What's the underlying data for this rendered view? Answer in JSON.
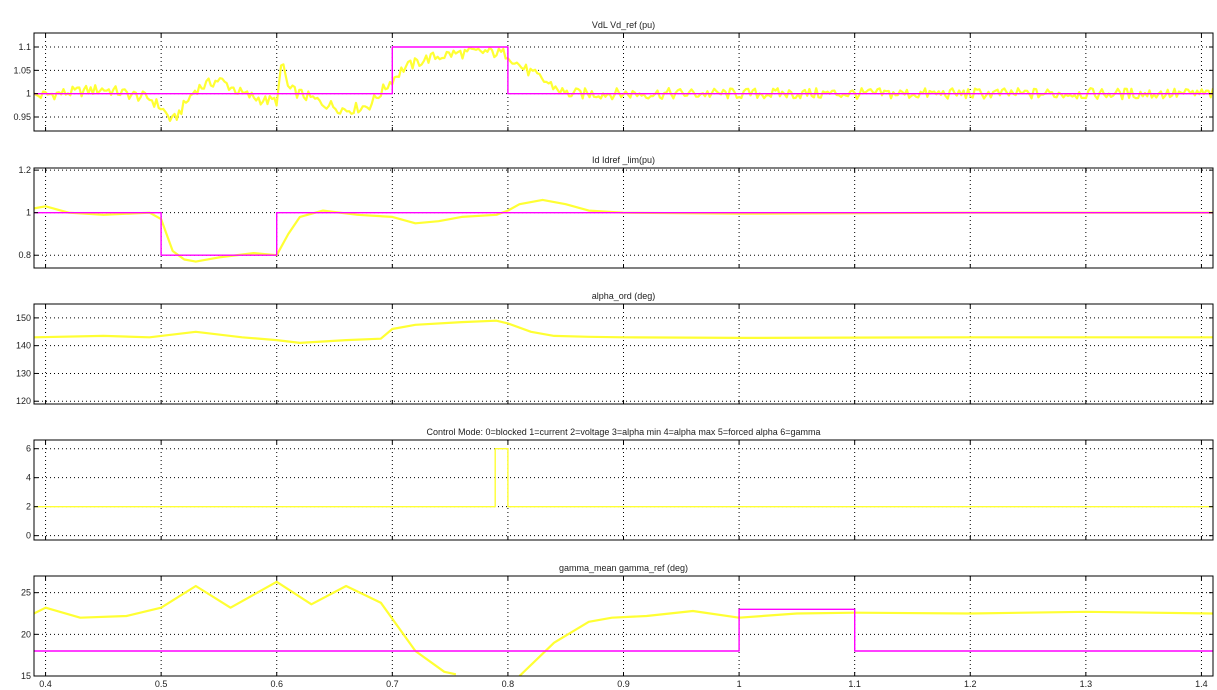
{
  "figure": {
    "background": "#ffffff",
    "trace_color_1": "#ffff33",
    "trace_color_2": "#ff00ff",
    "grid": true,
    "grid_style": "dotted"
  },
  "chart_data": [
    {
      "type": "line",
      "title": "VdL  Vd_ref (pu)",
      "xlim": [
        0.39,
        1.41
      ],
      "ylim": [
        0.92,
        1.13
      ],
      "yticks": [
        0.95,
        1,
        1.05,
        1.1
      ],
      "ytick_labels": [
        "0.95",
        "1",
        "1.05",
        "1.1"
      ],
      "xticks": [
        0.4,
        0.5,
        0.6,
        0.7,
        0.8,
        0.9,
        1,
        1.1,
        1.2,
        1.3,
        1.4
      ],
      "series": [
        {
          "color": "#ffff33",
          "noise": 0.012,
          "x": [
            0.39,
            0.45,
            0.49,
            0.5,
            0.51,
            0.52,
            0.53,
            0.55,
            0.57,
            0.59,
            0.6,
            0.605,
            0.61,
            0.62,
            0.64,
            0.66,
            0.68,
            0.7,
            0.71,
            0.73,
            0.75,
            0.78,
            0.8,
            0.81,
            0.83,
            0.85,
            0.9,
            1.0,
            1.2,
            1.41
          ],
          "y": [
            0.995,
            1.01,
            0.99,
            0.97,
            0.94,
            0.975,
            1.01,
            1.03,
            1.0,
            0.985,
            0.985,
            1.07,
            1.01,
            1.0,
            0.98,
            0.965,
            0.975,
            1.03,
            1.055,
            1.075,
            1.085,
            1.09,
            1.085,
            1.06,
            1.03,
            1.0,
            1.0,
            1.0,
            1.0,
            1.0
          ]
        },
        {
          "color": "#ff00ff",
          "step": true,
          "x": [
            0.39,
            0.7,
            0.7,
            0.8,
            0.8,
            1.41
          ],
          "y": [
            1.0,
            1.0,
            1.1,
            1.1,
            1.0,
            1.0
          ]
        }
      ]
    },
    {
      "type": "line",
      "title": "Id Idref _lim(pu)",
      "xlim": [
        0.39,
        1.41
      ],
      "ylim": [
        0.74,
        1.21
      ],
      "yticks": [
        0.8,
        1,
        1.2
      ],
      "ytick_labels": [
        "0.8",
        "1",
        "1.2"
      ],
      "xticks": [
        0.4,
        0.5,
        0.6,
        0.7,
        0.8,
        0.9,
        1,
        1.1,
        1.2,
        1.3,
        1.4
      ],
      "series": [
        {
          "color": "#ffff33",
          "x": [
            0.39,
            0.4,
            0.42,
            0.45,
            0.49,
            0.5,
            0.51,
            0.52,
            0.53,
            0.55,
            0.58,
            0.6,
            0.61,
            0.62,
            0.64,
            0.67,
            0.7,
            0.72,
            0.74,
            0.76,
            0.79,
            0.8,
            0.81,
            0.83,
            0.85,
            0.87,
            0.9,
            1.0,
            1.2,
            1.41
          ],
          "y": [
            1.02,
            1.03,
            1.0,
            0.99,
            1.0,
            0.97,
            0.82,
            0.78,
            0.77,
            0.79,
            0.81,
            0.8,
            0.9,
            0.98,
            1.01,
            0.99,
            0.98,
            0.95,
            0.96,
            0.98,
            0.99,
            1.01,
            1.04,
            1.06,
            1.04,
            1.01,
            1.0,
            0.995,
            1.0,
            1.0
          ]
        },
        {
          "color": "#ff00ff",
          "step": true,
          "x": [
            0.39,
            0.5,
            0.5,
            0.6,
            0.6,
            1.41
          ],
          "y": [
            1.0,
            1.0,
            0.8,
            0.8,
            1.0,
            1.0
          ]
        }
      ]
    },
    {
      "type": "line",
      "title": "alpha_ord (deg)",
      "xlim": [
        0.39,
        1.41
      ],
      "ylim": [
        119,
        155
      ],
      "yticks": [
        120,
        130,
        140,
        150
      ],
      "ytick_labels": [
        "120",
        "130",
        "140",
        "150"
      ],
      "xticks": [
        0.4,
        0.5,
        0.6,
        0.7,
        0.8,
        0.9,
        1,
        1.1,
        1.2,
        1.3,
        1.4
      ],
      "series": [
        {
          "color": "#ffff33",
          "x": [
            0.39,
            0.45,
            0.49,
            0.53,
            0.57,
            0.6,
            0.62,
            0.66,
            0.69,
            0.7,
            0.72,
            0.76,
            0.79,
            0.8,
            0.82,
            0.84,
            0.87,
            0.9,
            1.0,
            1.2,
            1.41
          ],
          "y": [
            143,
            143.5,
            143,
            145,
            143,
            142,
            141,
            142,
            142.5,
            146,
            147.5,
            148.5,
            149,
            148,
            145,
            143.5,
            143.2,
            143,
            142.8,
            143,
            143
          ]
        }
      ]
    },
    {
      "type": "line",
      "title": "Control Mode:  0=blocked  1=current  2=voltage  3=alpha min  4=alpha max  5=forced alpha  6=gamma",
      "xlim": [
        0.39,
        1.41
      ],
      "ylim": [
        -0.3,
        6.6
      ],
      "yticks": [
        0,
        2,
        4,
        6
      ],
      "ytick_labels": [
        "0",
        "2",
        "4",
        "6"
      ],
      "xticks": [
        0.4,
        0.5,
        0.6,
        0.7,
        0.8,
        0.9,
        1,
        1.1,
        1.2,
        1.3,
        1.4
      ],
      "series": [
        {
          "color": "#ffff33",
          "step": true,
          "x": [
            0.39,
            0.789,
            0.789,
            0.8,
            0.8,
            1.41
          ],
          "y": [
            2,
            2,
            6,
            6,
            2,
            2
          ]
        }
      ]
    },
    {
      "type": "line",
      "title": "gamma_mean  gamma_ref (deg)",
      "xlim": [
        0.39,
        1.41
      ],
      "ylim": [
        15,
        27
      ],
      "yticks": [
        15,
        20,
        25
      ],
      "ytick_labels": [
        "15",
        "20",
        "25"
      ],
      "xticks": [
        0.4,
        0.5,
        0.6,
        0.7,
        0.8,
        0.9,
        1,
        1.1,
        1.2,
        1.3,
        1.4
      ],
      "xtick_labels": [
        "0.4",
        "0.5",
        "0.6",
        "0.7",
        "0.8",
        "0.9",
        "1",
        "1.1",
        "1.2",
        "1.3",
        "1.4"
      ],
      "series": [
        {
          "color": "#ffff33",
          "x": [
            0.39,
            0.4,
            0.43,
            0.47,
            0.5,
            0.515,
            0.53,
            0.56,
            0.6,
            0.63,
            0.66,
            0.69,
            0.72,
            0.745,
            0.755
          ],
          "y": [
            22.5,
            23.2,
            22.0,
            22.2,
            23.2,
            24.5,
            25.8,
            23.2,
            26.3,
            23.6,
            25.8,
            23.8,
            18.0,
            15.5,
            15.2
          ]
        },
        {
          "color": "#ffff33",
          "x": [
            0.81,
            0.84,
            0.87,
            0.89,
            0.92,
            0.96,
            1.0,
            1.05,
            1.1,
            1.2,
            1.3,
            1.41
          ],
          "y": [
            15.0,
            19.0,
            21.5,
            22.0,
            22.2,
            22.8,
            22.0,
            22.5,
            22.6,
            22.5,
            22.7,
            22.5
          ]
        },
        {
          "color": "#ff00ff",
          "step": true,
          "x": [
            0.39,
            1.0,
            1.0,
            1.1,
            1.1,
            1.41
          ],
          "y": [
            18,
            18,
            23,
            23,
            18,
            18
          ]
        }
      ]
    }
  ]
}
